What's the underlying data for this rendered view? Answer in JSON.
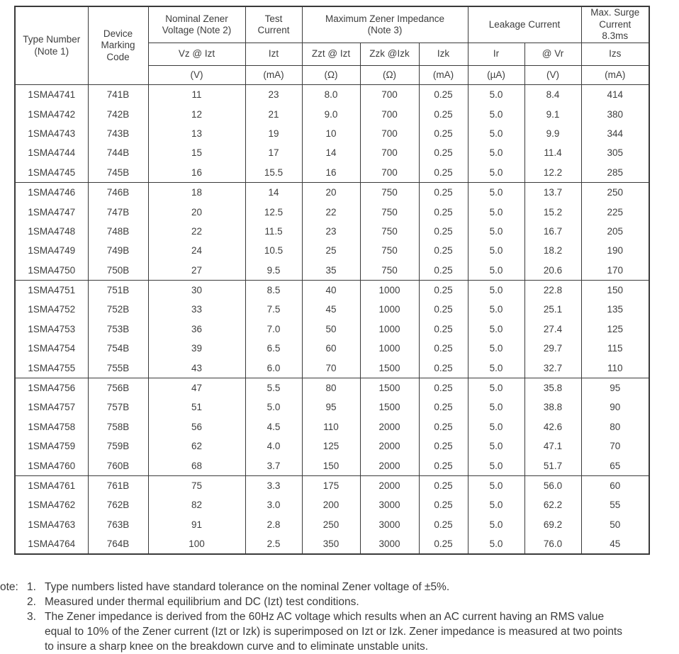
{
  "table": {
    "header": {
      "type_number": "Type Number\n(Note 1)",
      "device_marking": "Device\nMarking\nCode",
      "nominal_zener": "Nominal Zener\nVoltage (Note 2)",
      "test_current": "Test\nCurrent",
      "max_impedance": "Maximum Zener Impedance\n(Note 3)",
      "leakage": "Leakage Current",
      "max_surge": "Max. Surge\nCurrent\n8.3ms"
    },
    "symbols": [
      "Vz @ Izt",
      "Izt",
      "Zzt @ Izt",
      "Zzk @Izk",
      "Izk",
      "Ir",
      "@ Vr",
      "Izs"
    ],
    "units": [
      "(V)",
      "(mA)",
      "(Ω)",
      "(Ω)",
      "(mA)",
      "(µA)",
      "(V)",
      "(mA)"
    ],
    "group_size": 5,
    "rows": [
      [
        "1SMA4741",
        "741B",
        "11",
        "23",
        "8.0",
        "700",
        "0.25",
        "5.0",
        "8.4",
        "414"
      ],
      [
        "1SMA4742",
        "742B",
        "12",
        "21",
        "9.0",
        "700",
        "0.25",
        "5.0",
        "9.1",
        "380"
      ],
      [
        "1SMA4743",
        "743B",
        "13",
        "19",
        "10",
        "700",
        "0.25",
        "5.0",
        "9.9",
        "344"
      ],
      [
        "1SMA4744",
        "744B",
        "15",
        "17",
        "14",
        "700",
        "0.25",
        "5.0",
        "11.4",
        "305"
      ],
      [
        "1SMA4745",
        "745B",
        "16",
        "15.5",
        "16",
        "700",
        "0.25",
        "5.0",
        "12.2",
        "285"
      ],
      [
        "1SMA4746",
        "746B",
        "18",
        "14",
        "20",
        "750",
        "0.25",
        "5.0",
        "13.7",
        "250"
      ],
      [
        "1SMA4747",
        "747B",
        "20",
        "12.5",
        "22",
        "750",
        "0.25",
        "5.0",
        "15.2",
        "225"
      ],
      [
        "1SMA4748",
        "748B",
        "22",
        "11.5",
        "23",
        "750",
        "0.25",
        "5.0",
        "16.7",
        "205"
      ],
      [
        "1SMA4749",
        "749B",
        "24",
        "10.5",
        "25",
        "750",
        "0.25",
        "5.0",
        "18.2",
        "190"
      ],
      [
        "1SMA4750",
        "750B",
        "27",
        "9.5",
        "35",
        "750",
        "0.25",
        "5.0",
        "20.6",
        "170"
      ],
      [
        "1SMA4751",
        "751B",
        "30",
        "8.5",
        "40",
        "1000",
        "0.25",
        "5.0",
        "22.8",
        "150"
      ],
      [
        "1SMA4752",
        "752B",
        "33",
        "7.5",
        "45",
        "1000",
        "0.25",
        "5.0",
        "25.1",
        "135"
      ],
      [
        "1SMA4753",
        "753B",
        "36",
        "7.0",
        "50",
        "1000",
        "0.25",
        "5.0",
        "27.4",
        "125"
      ],
      [
        "1SMA4754",
        "754B",
        "39",
        "6.5",
        "60",
        "1000",
        "0.25",
        "5.0",
        "29.7",
        "115"
      ],
      [
        "1SMA4755",
        "755B",
        "43",
        "6.0",
        "70",
        "1500",
        "0.25",
        "5.0",
        "32.7",
        "110"
      ],
      [
        "1SMA4756",
        "756B",
        "47",
        "5.5",
        "80",
        "1500",
        "0.25",
        "5.0",
        "35.8",
        "95"
      ],
      [
        "1SMA4757",
        "757B",
        "51",
        "5.0",
        "95",
        "1500",
        "0.25",
        "5.0",
        "38.8",
        "90"
      ],
      [
        "1SMA4758",
        "758B",
        "56",
        "4.5",
        "110",
        "2000",
        "0.25",
        "5.0",
        "42.6",
        "80"
      ],
      [
        "1SMA4759",
        "759B",
        "62",
        "4.0",
        "125",
        "2000",
        "0.25",
        "5.0",
        "47.1",
        "70"
      ],
      [
        "1SMA4760",
        "760B",
        "68",
        "3.7",
        "150",
        "2000",
        "0.25",
        "5.0",
        "51.7",
        "65"
      ],
      [
        "1SMA4761",
        "761B",
        "75",
        "3.3",
        "175",
        "2000",
        "0.25",
        "5.0",
        "56.0",
        "60"
      ],
      [
        "1SMA4762",
        "762B",
        "82",
        "3.0",
        "200",
        "3000",
        "0.25",
        "5.0",
        "62.2",
        "55"
      ],
      [
        "1SMA4763",
        "763B",
        "91",
        "2.8",
        "250",
        "3000",
        "0.25",
        "5.0",
        "69.2",
        "50"
      ],
      [
        "1SMA4764",
        "764B",
        "100",
        "2.5",
        "350",
        "3000",
        "0.25",
        "5.0",
        "76.0",
        "45"
      ]
    ]
  },
  "notes": {
    "label": "ote:",
    "items": [
      {
        "num": "1.",
        "text": "Type numbers listed have standard tolerance on the nominal Zener voltage of ±5%."
      },
      {
        "num": "2.",
        "text": "Measured under thermal equilibrium and DC (Izt) test conditions."
      },
      {
        "num": "3.",
        "text": "The Zener impedance is derived from the 60Hz AC voltage which results when an AC current having an RMS value\nequal to 10% of the Zener current (Izt or Izk) is superimposed on Izt or Izk. Zener impedance is measured at two points\nto insure a sharp knee on the breakdown curve and to eliminate unstable units."
      }
    ]
  }
}
